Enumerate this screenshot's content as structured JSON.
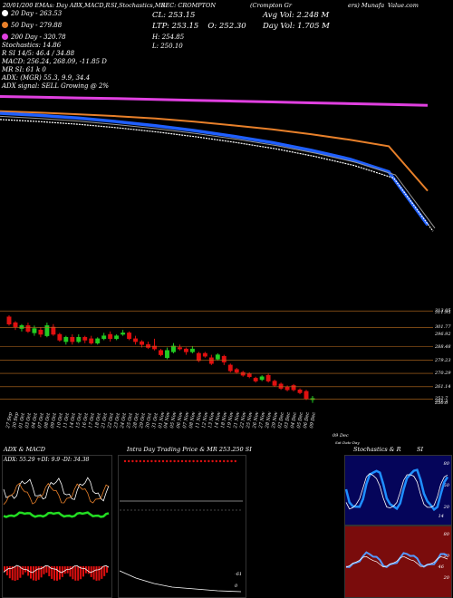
{
  "header": {
    "top_left": "20/01/200 EMAs: Day ABX,MACD,R",
    "top_mid": "SI,Stochastics,MR",
    "top_mid2": "SEC: CROMPTON",
    "top_right": "(Crompton Gr",
    "top_far": "ers) Munafa",
    "top_site": "Value.com"
  },
  "legend": {
    "ema20": "20  Day - 263.53",
    "ema50": "50  Day - 279.88",
    "ema200": "200  Day - 320.78",
    "ema20_color": "#ffffff",
    "ema50_color": "#e8802a",
    "ema200_color": "#e040e0"
  },
  "indicators": {
    "stochastic": "Stochastics: 14.86",
    "rsi": "R                    SI 14/5: 46.4  / 34.88",
    "macd": "MACD: 256.24,  268.09,  -11.85  D",
    "mr": "MR                    SI: 61 k 0",
    "adx": "ADX:                 (MGR) 55.3,  9.9,  34.4",
    "adx_signal": "ADX  signal: SELL Growing @ 2%"
  },
  "price": {
    "cl": "CL: 253.15",
    "ltp": "LTP: 253.15",
    "open": "O: 252.30",
    "high": "H: 254.85",
    "low": "L: 250.10",
    "avg_vol": "Avg Vol: 2.248   M",
    "day_vol": "Day Vol: 1.705  M"
  },
  "price_axis_labels": [
    "313.05",
    "311.95",
    "301.77",
    "296.92",
    "288.48",
    "279.23",
    "270.29",
    "261.14",
    "252.7",
    "251.2",
    "250.0"
  ],
  "date_labels": [
    "27 Sep",
    "30 Sep",
    "01 Oct",
    "03 Oct",
    "04 Oct",
    "07 Oct",
    "08 Oct",
    "09 Oct",
    "10 Oct",
    "11 Oct",
    "14 Oct",
    "15 Oct",
    "16 Oct",
    "17 Oct",
    "18 Oct",
    "21 Oct",
    "22 Oct",
    "23 Oct",
    "24 Oct",
    "25 Oct",
    "28 Oct",
    "29 Oct",
    "30 Oct",
    "31 Oct",
    "01 Nov",
    "04 Nov",
    "05 Nov",
    "06 Nov",
    "07 Nov",
    "08 Nov",
    "11 Nov",
    "12 Nov",
    "13 Nov",
    "14 Nov",
    "18 Nov",
    "19 Nov",
    "21 Nov",
    "22 Nov",
    "25 Nov",
    "26 Nov",
    "27 Nov",
    "28 Nov",
    "29 Nov",
    "02 Dec",
    "03 Dec",
    "04 Dec",
    "05 Dec",
    "06 Dec",
    "09 Dec"
  ],
  "axis_note": "09 Dec",
  "axis_note2": "Sat Date  Day",
  "panels": {
    "adx_title": "ADX  & MACD",
    "adx_readout": "ADX: 55.29  +DI: 9.9  -DI: 34.38",
    "intraday_title": "Intra  Day Trading Price  & MR",
    "intraday_value": "253.250",
    "intraday_si": "SI",
    "intraday_neg": "-61",
    "intraday_zero": "0",
    "stoch_title": "Stochastics & R",
    "stoch_si": "SI",
    "stoch_ticks": [
      "80",
      "50",
      "20"
    ],
    "rsi_ticks": [
      "80",
      "50",
      "20"
    ],
    "stoch_value": "14",
    "rsi_value": "46"
  },
  "chart_data": {
    "type": "candlestick",
    "ylim": [
      248,
      315
    ],
    "candles": [
      {
        "o": 309,
        "c": 304,
        "h": 310,
        "l": 303
      },
      {
        "o": 305,
        "c": 302,
        "h": 306,
        "l": 300
      },
      {
        "o": 301,
        "c": 303,
        "h": 304,
        "l": 299
      },
      {
        "o": 303,
        "c": 299,
        "h": 305,
        "l": 298
      },
      {
        "o": 298,
        "c": 301,
        "h": 303,
        "l": 296
      },
      {
        "o": 300,
        "c": 297,
        "h": 302,
        "l": 295
      },
      {
        "o": 296,
        "c": 303,
        "h": 305,
        "l": 295
      },
      {
        "o": 302,
        "c": 297,
        "h": 304,
        "l": 296
      },
      {
        "o": 297,
        "c": 293,
        "h": 298,
        "l": 292
      },
      {
        "o": 292,
        "c": 295,
        "h": 296,
        "l": 290
      },
      {
        "o": 295,
        "c": 292,
        "h": 297,
        "l": 290
      },
      {
        "o": 292,
        "c": 295,
        "h": 297,
        "l": 291
      },
      {
        "o": 295,
        "c": 293,
        "h": 296,
        "l": 291
      },
      {
        "o": 294,
        "c": 291,
        "h": 296,
        "l": 290
      },
      {
        "o": 291,
        "c": 294,
        "h": 295,
        "l": 290
      },
      {
        "o": 294,
        "c": 296,
        "h": 298,
        "l": 293
      },
      {
        "o": 297,
        "c": 294,
        "h": 299,
        "l": 292
      },
      {
        "o": 294,
        "c": 296,
        "h": 297,
        "l": 293
      },
      {
        "o": 297,
        "c": 298,
        "h": 300,
        "l": 296
      },
      {
        "o": 298,
        "c": 294,
        "h": 299,
        "l": 293
      },
      {
        "o": 294,
        "c": 292,
        "h": 296,
        "l": 290
      },
      {
        "o": 292,
        "c": 290,
        "h": 293,
        "l": 288
      },
      {
        "o": 290,
        "c": 288,
        "h": 292,
        "l": 287
      },
      {
        "o": 289,
        "c": 287,
        "h": 294,
        "l": 286
      },
      {
        "o": 286,
        "c": 283,
        "h": 287,
        "l": 282
      },
      {
        "o": 281,
        "c": 286,
        "h": 288,
        "l": 280
      },
      {
        "o": 285,
        "c": 289,
        "h": 291,
        "l": 284
      },
      {
        "o": 288,
        "c": 287,
        "h": 290,
        "l": 286
      },
      {
        "o": 287,
        "c": 285,
        "h": 288,
        "l": 283
      },
      {
        "o": 285,
        "c": 287,
        "h": 289,
        "l": 284
      },
      {
        "o": 284,
        "c": 279,
        "h": 285,
        "l": 278
      },
      {
        "o": 284,
        "c": 282,
        "h": 285,
        "l": 281
      },
      {
        "o": 281,
        "c": 277,
        "h": 283,
        "l": 276
      },
      {
        "o": 280,
        "c": 283,
        "h": 284,
        "l": 279
      },
      {
        "o": 282,
        "c": 278,
        "h": 283,
        "l": 276
      },
      {
        "o": 276,
        "c": 272,
        "h": 277,
        "l": 271
      },
      {
        "o": 273,
        "c": 271,
        "h": 274,
        "l": 270
      },
      {
        "o": 271,
        "c": 269,
        "h": 272,
        "l": 268
      },
      {
        "o": 270,
        "c": 268,
        "h": 271,
        "l": 267
      },
      {
        "o": 267,
        "c": 265,
        "h": 268,
        "l": 264
      },
      {
        "o": 266,
        "c": 268,
        "h": 269,
        "l": 265
      },
      {
        "o": 269,
        "c": 265,
        "h": 270,
        "l": 264
      },
      {
        "o": 265,
        "c": 262,
        "h": 266,
        "l": 261
      },
      {
        "o": 263,
        "c": 260,
        "h": 264,
        "l": 259
      },
      {
        "o": 261,
        "c": 259,
        "h": 262,
        "l": 258
      },
      {
        "o": 262,
        "c": 259,
        "h": 263,
        "l": 258
      },
      {
        "o": 259,
        "c": 257,
        "h": 260,
        "l": 256
      },
      {
        "o": 258,
        "c": 253,
        "h": 259,
        "l": 252
      },
      {
        "o": 252.3,
        "c": 253.15,
        "h": 254.85,
        "l": 250.1
      }
    ],
    "hlines": [
      313.05,
      301.77,
      288.48,
      279.23,
      270.29,
      261.14,
      252.7
    ],
    "ema": {
      "ema200": [
        325,
        324.7,
        324.3,
        324,
        323.6,
        323.2,
        322.8,
        322.4,
        322,
        321.6,
        321.2,
        320.78
      ],
      "ema50": [
        318,
        317.3,
        316.5,
        315.6,
        314.5,
        313,
        311.2,
        309.3,
        307,
        304.3,
        301.2,
        279.88
      ],
      "ema20": [
        317,
        316,
        314.7,
        313,
        311,
        308.7,
        306,
        303,
        299.3,
        295,
        289,
        263.53
      ]
    }
  }
}
